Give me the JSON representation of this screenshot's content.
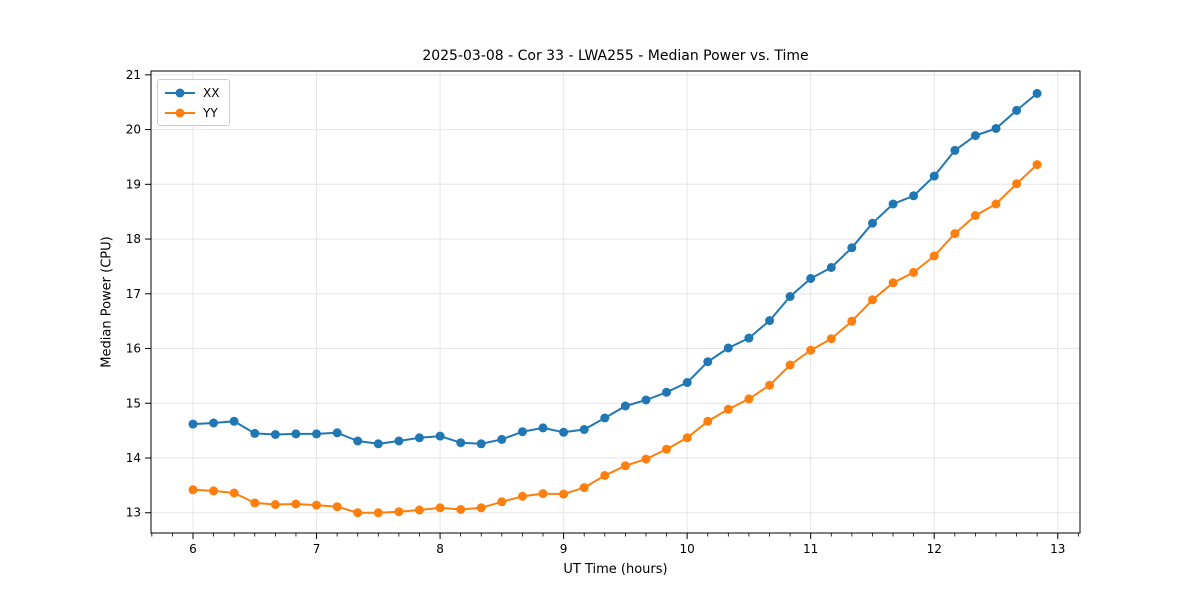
{
  "figure": {
    "background": "#ffffff",
    "axes": {
      "spine_color": "#000000",
      "grid_color": "#e6e6e6",
      "tick_label_color": "#000000"
    }
  },
  "chart_data": {
    "type": "line",
    "title": "2025-03-08 - Cor 33 - LWA255 - Median Power vs. Time",
    "xlabel": "UT Time (hours)",
    "ylabel": "Median Power (CPU)",
    "xlim": [
      5.66,
      13.18
    ],
    "ylim": [
      12.63,
      21.07
    ],
    "xticks": [
      6,
      7,
      8,
      9,
      10,
      11,
      12,
      13
    ],
    "yticks": [
      13,
      14,
      15,
      16,
      17,
      18,
      19,
      20,
      21
    ],
    "x_minor_tick_step": 0.1667,
    "grid": true,
    "legend_position": "upper-left",
    "x": [
      6.0,
      6.167,
      6.333,
      6.5,
      6.667,
      6.833,
      7.0,
      7.167,
      7.333,
      7.5,
      7.667,
      7.833,
      8.0,
      8.167,
      8.333,
      8.5,
      8.667,
      8.833,
      9.0,
      9.167,
      9.333,
      9.5,
      9.667,
      9.833,
      10.0,
      10.167,
      10.333,
      10.5,
      10.667,
      10.833,
      11.0,
      11.167,
      11.333,
      11.5,
      11.667,
      11.833,
      12.0,
      12.167,
      12.333,
      12.5,
      12.667,
      12.833
    ],
    "series": [
      {
        "name": "XX",
        "color": "#1f77b4",
        "values": [
          14.62,
          14.64,
          14.67,
          14.45,
          14.43,
          14.44,
          14.44,
          14.46,
          14.31,
          14.26,
          14.31,
          14.37,
          14.4,
          14.28,
          14.26,
          14.34,
          14.48,
          14.55,
          14.47,
          14.52,
          14.73,
          14.95,
          15.06,
          15.2,
          15.38,
          15.76,
          16.01,
          16.19,
          16.51,
          16.95,
          17.28,
          17.48,
          17.84,
          18.29,
          18.64,
          18.79,
          19.15,
          19.62,
          19.89,
          20.02,
          20.35,
          20.66
        ]
      },
      {
        "name": "YY",
        "color": "#ff7f0e",
        "values": [
          13.42,
          13.4,
          13.36,
          13.18,
          13.15,
          13.16,
          13.14,
          13.11,
          13.0,
          13.0,
          13.02,
          13.05,
          13.09,
          13.06,
          13.09,
          13.2,
          13.3,
          13.35,
          13.34,
          13.46,
          13.68,
          13.86,
          13.98,
          14.16,
          14.37,
          14.67,
          14.89,
          15.08,
          15.33,
          15.7,
          15.97,
          16.18,
          16.5,
          16.89,
          17.2,
          17.39,
          17.69,
          18.1,
          18.43,
          18.64,
          19.01,
          19.36
        ]
      }
    ]
  }
}
